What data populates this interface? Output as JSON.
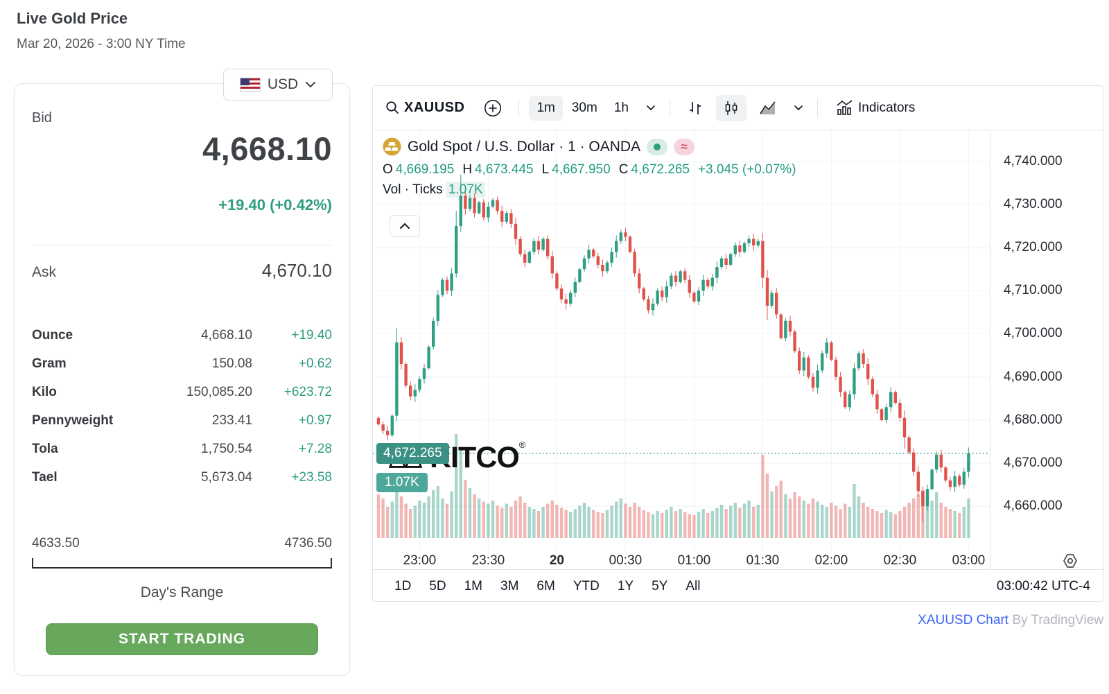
{
  "page": {
    "title": "Live Gold Price",
    "datetime": "Mar 20, 2026 - 3:00 NY Time"
  },
  "currency_selector": {
    "label": "USD"
  },
  "quote": {
    "bid_label": "Bid",
    "bid": "4,668.10",
    "change": "+19.40 (+0.42%)",
    "ask_label": "Ask",
    "ask": "4,670.10",
    "units": [
      {
        "label": "Ounce",
        "value": "4,668.10",
        "change": "+19.40"
      },
      {
        "label": "Gram",
        "value": "150.08",
        "change": "+0.62"
      },
      {
        "label": "Kilo",
        "value": "150,085.20",
        "change": "+623.72"
      },
      {
        "label": "Pennyweight",
        "value": "233.41",
        "change": "+0.97"
      },
      {
        "label": "Tola",
        "value": "1,750.54",
        "change": "+7.28"
      },
      {
        "label": "Tael",
        "value": "5,673.04",
        "change": "+23.58"
      }
    ],
    "range": {
      "low": "4633.50",
      "high": "4736.50",
      "label": "Day's Range"
    },
    "cta": "START TRADING"
  },
  "chart_toolbar": {
    "symbol": "XAUUSD",
    "intervals": [
      "1m",
      "30m",
      "1h"
    ],
    "active_interval": "1m",
    "indicators_label": "Indicators"
  },
  "chart_header": {
    "symbol_title": "Gold Spot / U.S. Dollar · 1 · OANDA",
    "ohlc": {
      "o_label": "O",
      "o": "4,669.195",
      "h_label": "H",
      "h": "4,673.445",
      "l_label": "L",
      "l": "4,667.950",
      "c_label": "C",
      "c": "4,672.265",
      "change": "+3.045 (+0.07%)"
    },
    "volume_label": "Vol · Ticks",
    "volume_value": "1.07K",
    "approx_pill": "≈"
  },
  "watermark": {
    "text": "KITCO",
    "reg": "®"
  },
  "chart_footer": {
    "ranges": [
      "1D",
      "5D",
      "1M",
      "3M",
      "6M",
      "YTD",
      "1Y",
      "5Y",
      "All"
    ],
    "clock": "03:00:42 UTC-4"
  },
  "attribution": {
    "link": "XAUUSD Chart",
    "suffix": " By TradingView"
  },
  "colors": {
    "up": "#2f9e83",
    "down": "#e0534c",
    "volume_up": "rgba(47,158,131,0.42)",
    "volume_down": "rgba(224,83,76,0.42)",
    "grid": "#f0f3f7",
    "accent_green": "#2e9c82",
    "button_green": "#68a85c",
    "tag_bg": "#3a9184",
    "vol_tag_bg": "#4da79b",
    "link_blue": "#3b64f4"
  },
  "chart_data": {
    "type": "candlestick+volume",
    "symbol": "XAUUSD",
    "title": "Gold Spot / U.S. Dollar · 1 · OANDA",
    "candle_interval_min": 2,
    "start_time": "22:42",
    "last_price": 4672.265,
    "last_volume_label": "1.07K",
    "current_candle": {
      "open": 4669.195,
      "high": 4673.445,
      "low": 4667.95,
      "close": 4672.265
    },
    "open_first": 4680.5,
    "y_axis_ticks": [
      {
        "label": "4,740.000",
        "value": 4740
      },
      {
        "label": "4,730.000",
        "value": 4730
      },
      {
        "label": "4,720.000",
        "value": 4720
      },
      {
        "label": "4,710.000",
        "value": 4710
      },
      {
        "label": "4,700.000",
        "value": 4700
      },
      {
        "label": "4,690.000",
        "value": 4690
      },
      {
        "label": "4,680.000",
        "value": 4680
      },
      {
        "label": "4,670.000",
        "value": 4670
      },
      {
        "label": "4,660.000",
        "value": 4660
      }
    ],
    "x_ticks": [
      {
        "label": "23:00",
        "index": 9
      },
      {
        "label": "23:30",
        "index": 24
      },
      {
        "label": "20",
        "index": 39,
        "bold": true
      },
      {
        "label": "00:30",
        "index": 54
      },
      {
        "label": "01:00",
        "index": 69
      },
      {
        "label": "01:30",
        "index": 84
      },
      {
        "label": "02:00",
        "index": 99
      },
      {
        "label": "02:30",
        "index": 114
      },
      {
        "label": "03:00",
        "index": 129
      }
    ],
    "closes": [
      4679,
      4677.5,
      4676.5,
      4681,
      4698,
      4693,
      4688,
      4685.5,
      4687,
      4689.5,
      4692,
      4697,
      4703,
      4709,
      4712.5,
      4710,
      4714,
      4725,
      4732,
      4729,
      4731.5,
      4728,
      4730.5,
      4727,
      4729.5,
      4731,
      4728.5,
      4726,
      4728,
      4725.5,
      4722,
      4718.5,
      4716.5,
      4719,
      4721.5,
      4719.5,
      4722,
      4718,
      4714,
      4710.5,
      4708,
      4707,
      4709.5,
      4712,
      4715,
      4717.5,
      4719.5,
      4718,
      4716,
      4714.5,
      4716.5,
      4719,
      4721.5,
      4723.5,
      4722.5,
      4719,
      4714,
      4710.5,
      4708,
      4705.5,
      4707,
      4710,
      4708.5,
      4711,
      4713.5,
      4712,
      4714.5,
      4712.5,
      4709.5,
      4707.5,
      4710,
      4712.5,
      4711,
      4713,
      4715.5,
      4717.5,
      4716,
      4718.5,
      4720.5,
      4719,
      4721,
      4722,
      4720.5,
      4721.5,
      4713,
      4706.5,
      4709.5,
      4704.5,
      4699,
      4703,
      4700.5,
      4696,
      4691.5,
      4694.5,
      4690,
      4687.5,
      4691.5,
      4695.5,
      4698,
      4694,
      4690,
      4686.5,
      4683,
      4686,
      4692,
      4695.5,
      4693,
      4689.5,
      4686,
      4682.5,
      4680,
      4683,
      4686.5,
      4684,
      4680.5,
      4676,
      4672.5,
      4668,
      4663.5,
      4660,
      4664,
      4668.5,
      4672,
      4669,
      4666,
      4664.5,
      4667,
      4665,
      4668,
      4672.3
    ],
    "volume_rel": [
      0.42,
      0.38,
      0.3,
      0.35,
      0.52,
      0.4,
      0.33,
      0.28,
      0.31,
      0.36,
      0.34,
      0.4,
      0.46,
      0.5,
      0.38,
      0.33,
      0.45,
      1.0,
      0.85,
      0.56,
      0.48,
      0.42,
      0.38,
      0.35,
      0.33,
      0.36,
      0.31,
      0.29,
      0.33,
      0.3,
      0.36,
      0.4,
      0.34,
      0.3,
      0.28,
      0.26,
      0.3,
      0.33,
      0.36,
      0.32,
      0.29,
      0.27,
      0.25,
      0.28,
      0.31,
      0.34,
      0.3,
      0.27,
      0.25,
      0.24,
      0.27,
      0.31,
      0.35,
      0.38,
      0.33,
      0.3,
      0.34,
      0.3,
      0.27,
      0.25,
      0.23,
      0.26,
      0.24,
      0.27,
      0.3,
      0.26,
      0.28,
      0.25,
      0.23,
      0.22,
      0.25,
      0.28,
      0.24,
      0.26,
      0.29,
      0.32,
      0.28,
      0.31,
      0.34,
      0.29,
      0.33,
      0.36,
      0.3,
      0.32,
      0.8,
      0.62,
      0.45,
      0.5,
      0.55,
      0.42,
      0.38,
      0.44,
      0.4,
      0.36,
      0.33,
      0.38,
      0.35,
      0.32,
      0.3,
      0.34,
      0.31,
      0.28,
      0.33,
      0.3,
      0.52,
      0.4,
      0.34,
      0.3,
      0.28,
      0.26,
      0.24,
      0.27,
      0.25,
      0.23,
      0.26,
      0.3,
      0.34,
      0.38,
      0.42,
      0.46,
      0.4,
      0.36,
      0.44,
      0.34,
      0.3,
      0.28,
      0.26,
      0.24,
      0.3,
      0.38
    ],
    "wick_overrides": {
      "4": [
        2.5,
        0.5
      ],
      "17": [
        3,
        0.5
      ],
      "18": [
        4,
        0.5
      ],
      "84": [
        1,
        1.5
      ],
      "85": [
        0.5,
        2
      ],
      "115": [
        0.5,
        1.5
      ],
      "119": [
        0.5,
        3
      ]
    }
  }
}
